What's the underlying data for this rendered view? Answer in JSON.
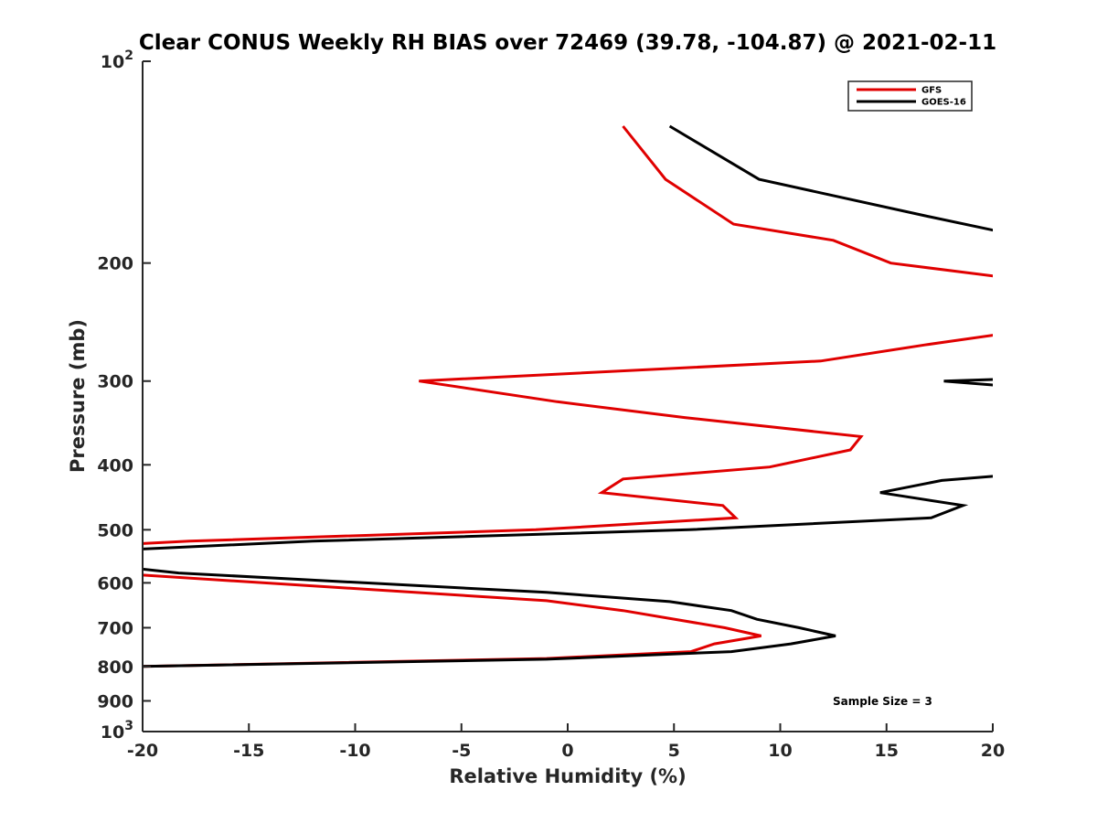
{
  "chart_data": {
    "type": "line",
    "title": "Clear CONUS Weekly RH BIAS over 72469 (39.78, -104.87) @ 2021-02-11",
    "xlabel": "Relative Humidity (%)",
    "ylabel": "Pressure (mb)",
    "xlim": [
      -20,
      20
    ],
    "ylim": [
      100,
      1000
    ],
    "y_scale": "log",
    "y_reversed": true,
    "grid": false,
    "legend_position": "top-right",
    "x_ticks": [
      "-20",
      "-15",
      "-10",
      "-5",
      "0",
      "5",
      "10",
      "15",
      "20"
    ],
    "y_ticks": [
      {
        "value": 100,
        "base": "10",
        "exp": "2"
      },
      {
        "value": 200,
        "label": "200"
      },
      {
        "value": 300,
        "label": "300"
      },
      {
        "value": 400,
        "label": "400"
      },
      {
        "value": 500,
        "label": "500"
      },
      {
        "value": 600,
        "label": "600"
      },
      {
        "value": 700,
        "label": "700"
      },
      {
        "value": 800,
        "label": "800"
      },
      {
        "value": 900,
        "label": "900"
      },
      {
        "value": 1000,
        "base": "10",
        "exp": "3"
      }
    ],
    "annotation": "Sample Size = 3",
    "series": [
      {
        "name": "GFS",
        "color": "#e00000",
        "segments": [
          [
            [
              2.6,
              125
            ],
            [
              4.6,
              150
            ],
            [
              7.8,
              175
            ],
            [
              12.5,
              185
            ],
            [
              15.2,
              200
            ],
            [
              20.5,
              210
            ]
          ],
          [
            [
              20.5,
              255
            ],
            [
              16.8,
              265
            ],
            [
              11.9,
              280
            ],
            [
              -7.0,
              300
            ],
            [
              -0.5,
              322
            ],
            [
              5.5,
              340
            ],
            [
              13.8,
              363
            ],
            [
              13.3,
              380
            ],
            [
              9.5,
              403
            ],
            [
              2.6,
              420
            ],
            [
              1.6,
              440
            ],
            [
              7.3,
              460
            ],
            [
              7.9,
              480
            ],
            [
              -1.5,
              500
            ],
            [
              -17.8,
              520
            ],
            [
              -20.5,
              525
            ]
          ],
          [
            [
              -20.5,
              583
            ],
            [
              -1.0,
              638
            ],
            [
              2.6,
              660
            ],
            [
              7.4,
              700
            ],
            [
              9.1,
              720
            ],
            [
              6.9,
              740
            ],
            [
              5.8,
              760
            ],
            [
              -1.0,
              778
            ],
            [
              -20.5,
              800
            ]
          ]
        ]
      },
      {
        "name": "GOES-16",
        "color": "#000000",
        "segments": [
          [
            [
              4.8,
              125
            ],
            [
              9.0,
              150
            ],
            [
              16.8,
              170
            ],
            [
              20.5,
              180
            ]
          ],
          [
            [
              20.5,
              298
            ],
            [
              17.7,
              300
            ],
            [
              20.5,
              305
            ]
          ],
          [
            [
              20.5,
              415
            ],
            [
              17.6,
              422
            ],
            [
              14.7,
              440
            ],
            [
              18.6,
              460
            ],
            [
              17.1,
              480
            ],
            [
              5.7,
              500
            ],
            [
              -12.0,
              520
            ],
            [
              -20.5,
              535
            ]
          ],
          [
            [
              -20.5,
              570
            ],
            [
              -18.3,
              580
            ],
            [
              -9.5,
              600
            ],
            [
              -1.0,
              620
            ],
            [
              4.8,
              640
            ],
            [
              7.7,
              660
            ],
            [
              8.9,
              680
            ],
            [
              10.9,
              700
            ],
            [
              12.6,
              720
            ],
            [
              10.5,
              740
            ],
            [
              7.7,
              760
            ],
            [
              -1.0,
              780
            ],
            [
              -20.5,
              800
            ]
          ]
        ]
      }
    ]
  }
}
